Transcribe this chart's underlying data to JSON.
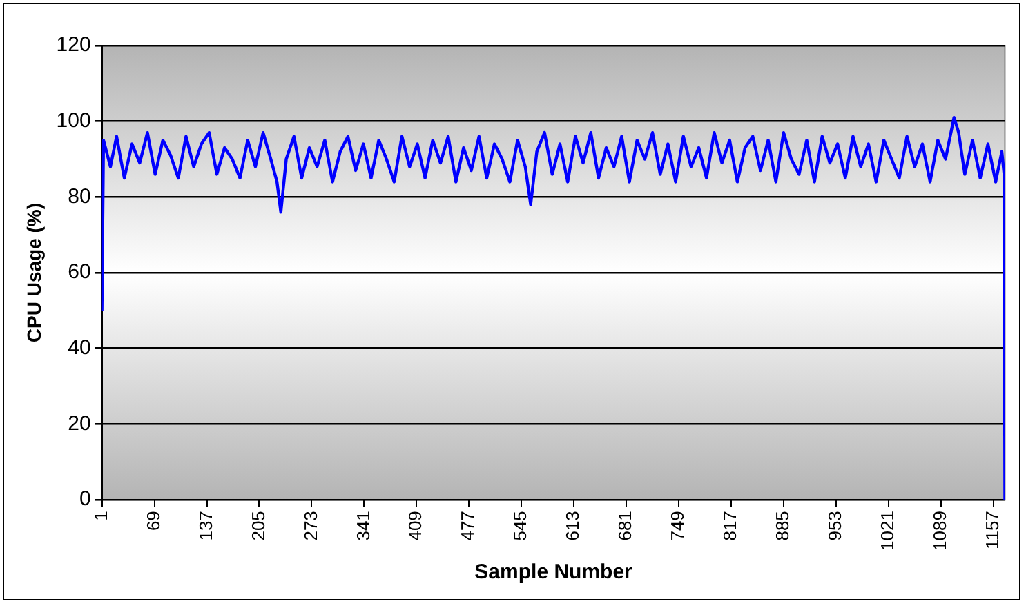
{
  "chart_data": {
    "type": "line",
    "xlabel": "Sample Number",
    "ylabel": "CPU Usage (%)",
    "xlim": [
      1,
      1172
    ],
    "xticks": [
      1,
      69,
      137,
      205,
      273,
      341,
      409,
      477,
      545,
      613,
      681,
      749,
      817,
      885,
      953,
      1021,
      1089,
      1157
    ],
    "ylim": [
      0,
      120
    ],
    "yticks": [
      0,
      20,
      40,
      60,
      80,
      100,
      120
    ],
    "grid": "y",
    "legend": false,
    "marker": "none",
    "line_style": "solid",
    "series": [
      {
        "color": "#0000ff",
        "x": [
          1,
          3,
          12,
          20,
          30,
          40,
          50,
          60,
          70,
          80,
          90,
          100,
          110,
          120,
          130,
          140,
          150,
          160,
          170,
          180,
          190,
          200,
          210,
          220,
          228,
          233,
          240,
          250,
          260,
          270,
          280,
          290,
          300,
          310,
          320,
          330,
          340,
          350,
          360,
          370,
          380,
          390,
          400,
          410,
          420,
          430,
          440,
          450,
          460,
          470,
          480,
          490,
          500,
          510,
          520,
          530,
          540,
          550,
          557,
          565,
          575,
          585,
          595,
          605,
          615,
          625,
          635,
          645,
          655,
          665,
          675,
          685,
          695,
          705,
          715,
          725,
          735,
          745,
          755,
          765,
          775,
          785,
          795,
          805,
          815,
          825,
          835,
          845,
          855,
          865,
          875,
          885,
          895,
          905,
          915,
          925,
          935,
          945,
          955,
          965,
          975,
          985,
          995,
          1005,
          1015,
          1025,
          1035,
          1045,
          1055,
          1065,
          1075,
          1085,
          1095,
          1102,
          1106,
          1112,
          1120,
          1130,
          1140,
          1150,
          1160,
          1168,
          1171,
          1172
        ],
        "values": [
          50,
          95,
          88,
          96,
          85,
          94,
          89,
          97,
          86,
          95,
          91,
          85,
          96,
          88,
          94,
          97,
          86,
          93,
          90,
          85,
          95,
          88,
          97,
          90,
          84,
          76,
          90,
          96,
          85,
          93,
          88,
          95,
          84,
          92,
          96,
          87,
          94,
          85,
          95,
          90,
          84,
          96,
          88,
          94,
          85,
          95,
          89,
          96,
          84,
          93,
          87,
          96,
          85,
          94,
          90,
          84,
          95,
          88,
          78,
          92,
          97,
          86,
          94,
          84,
          96,
          89,
          97,
          85,
          93,
          88,
          96,
          84,
          95,
          90,
          97,
          86,
          94,
          84,
          96,
          88,
          93,
          85,
          97,
          89,
          95,
          84,
          93,
          96,
          87,
          95,
          84,
          97,
          90,
          86,
          95,
          84,
          96,
          89,
          94,
          85,
          96,
          88,
          94,
          84,
          95,
          90,
          85,
          96,
          88,
          94,
          84,
          95,
          90,
          97,
          101,
          97,
          86,
          95,
          85,
          94,
          84,
          92,
          86,
          0
        ]
      }
    ]
  }
}
